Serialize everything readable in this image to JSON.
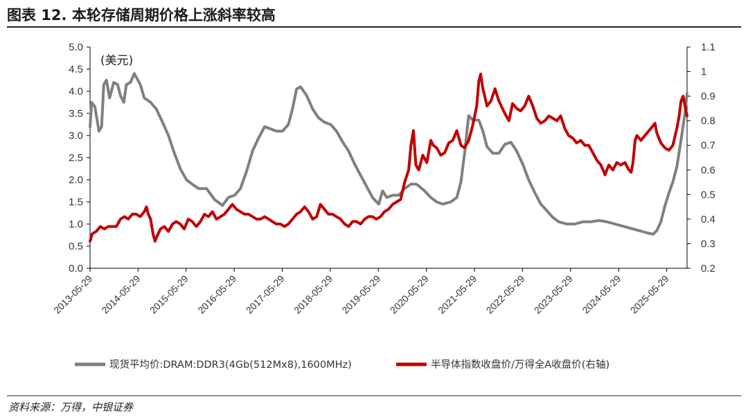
{
  "figure": {
    "title": "图表 12. 本轮存储周期价格上涨斜率较高",
    "source": "资料来源：万得，中银证券"
  },
  "colors": {
    "gray_series": "#7f7f7f",
    "red_series": "#c00000",
    "axis": "#000000"
  },
  "chart_data": {
    "type": "line",
    "title": "",
    "unit_label": "(美元)",
    "x_ticks": [
      "2013-05-29",
      "2014-05-29",
      "2015-05-29",
      "2016-05-29",
      "2017-05-29",
      "2018-05-29",
      "2019-05-29",
      "2020-05-29",
      "2021-05-29",
      "2022-05-29",
      "2023-05-29",
      "2024-05-29",
      "2025-05-29"
    ],
    "x_range": [
      "2013-05-29",
      "2025-10-31"
    ],
    "y_left": {
      "range": [
        0,
        5.0
      ],
      "ticks": [
        "0.0",
        "0.5",
        "1.0",
        "1.5",
        "2.0",
        "2.5",
        "3.0",
        "3.5",
        "4.0",
        "4.5",
        "5.0"
      ]
    },
    "y_right": {
      "range": [
        0.2,
        1.1
      ],
      "ticks": [
        "0.2",
        "0.3",
        "0.4",
        "0.5",
        "0.6",
        "0.7",
        "0.8",
        "0.9",
        "1",
        "1.1"
      ]
    },
    "grid": false,
    "legend_position": "bottom",
    "series": [
      {
        "name": "现货平均价:DRAM:DDR3(4Gb(512Mx8),1600MHz)",
        "axis": "left",
        "color": "#7f7f7f",
        "points": [
          [
            "2013-05-29",
            3.2
          ],
          [
            "2013-06-10",
            3.75
          ],
          [
            "2013-07-05",
            3.65
          ],
          [
            "2013-08-05",
            3.1
          ],
          [
            "2013-08-25",
            3.2
          ],
          [
            "2013-09-10",
            4.15
          ],
          [
            "2013-10-01",
            4.25
          ],
          [
            "2013-10-25",
            3.85
          ],
          [
            "2013-11-25",
            4.2
          ],
          [
            "2013-12-25",
            4.15
          ],
          [
            "2014-01-15",
            3.9
          ],
          [
            "2014-02-10",
            3.75
          ],
          [
            "2014-03-01",
            4.15
          ],
          [
            "2014-04-01",
            4.2
          ],
          [
            "2014-05-01",
            4.4
          ],
          [
            "2014-06-15",
            4.15
          ],
          [
            "2014-07-15",
            3.85
          ],
          [
            "2014-09-01",
            3.75
          ],
          [
            "2014-10-15",
            3.6
          ],
          [
            "2014-12-01",
            3.3
          ],
          [
            "2015-01-15",
            3.0
          ],
          [
            "2015-03-01",
            2.6
          ],
          [
            "2015-04-15",
            2.25
          ],
          [
            "2015-06-01",
            2.0
          ],
          [
            "2015-07-15",
            1.9
          ],
          [
            "2015-09-01",
            1.8
          ],
          [
            "2015-11-01",
            1.8
          ],
          [
            "2016-01-01",
            1.55
          ],
          [
            "2016-03-01",
            1.42
          ],
          [
            "2016-04-15",
            1.6
          ],
          [
            "2016-06-01",
            1.65
          ],
          [
            "2016-07-15",
            1.8
          ],
          [
            "2016-09-01",
            2.2
          ],
          [
            "2016-10-15",
            2.65
          ],
          [
            "2016-12-01",
            2.95
          ],
          [
            "2017-01-15",
            3.2
          ],
          [
            "2017-03-01",
            3.15
          ],
          [
            "2017-04-15",
            3.1
          ],
          [
            "2017-06-01",
            3.1
          ],
          [
            "2017-07-15",
            3.25
          ],
          [
            "2017-08-15",
            3.6
          ],
          [
            "2017-09-15",
            4.05
          ],
          [
            "2017-10-15",
            4.1
          ],
          [
            "2017-12-01",
            3.9
          ],
          [
            "2018-01-15",
            3.6
          ],
          [
            "2018-03-01",
            3.4
          ],
          [
            "2018-04-15",
            3.3
          ],
          [
            "2018-06-01",
            3.25
          ],
          [
            "2018-07-15",
            3.1
          ],
          [
            "2018-09-01",
            2.85
          ],
          [
            "2018-10-15",
            2.65
          ],
          [
            "2018-12-01",
            2.35
          ],
          [
            "2019-01-15",
            2.1
          ],
          [
            "2019-03-01",
            1.85
          ],
          [
            "2019-04-15",
            1.6
          ],
          [
            "2019-06-01",
            1.45
          ],
          [
            "2019-07-01",
            1.75
          ],
          [
            "2019-08-01",
            1.6
          ],
          [
            "2019-09-15",
            1.65
          ],
          [
            "2019-11-01",
            1.65
          ],
          [
            "2019-12-15",
            1.8
          ],
          [
            "2020-02-01",
            1.9
          ],
          [
            "2020-03-15",
            1.9
          ],
          [
            "2020-05-15",
            1.75
          ],
          [
            "2020-07-01",
            1.6
          ],
          [
            "2020-08-15",
            1.5
          ],
          [
            "2020-10-01",
            1.45
          ],
          [
            "2020-12-01",
            1.5
          ],
          [
            "2021-01-15",
            1.6
          ],
          [
            "2021-02-15",
            1.95
          ],
          [
            "2021-03-15",
            2.6
          ],
          [
            "2021-04-15",
            3.45
          ],
          [
            "2021-05-15",
            3.35
          ],
          [
            "2021-07-01",
            3.35
          ],
          [
            "2021-08-01",
            3.1
          ],
          [
            "2021-09-01",
            2.75
          ],
          [
            "2021-10-15",
            2.6
          ],
          [
            "2021-12-01",
            2.6
          ],
          [
            "2022-01-15",
            2.8
          ],
          [
            "2022-03-01",
            2.85
          ],
          [
            "2022-04-15",
            2.65
          ],
          [
            "2022-06-01",
            2.35
          ],
          [
            "2022-07-15",
            2.0
          ],
          [
            "2022-09-01",
            1.7
          ],
          [
            "2022-10-15",
            1.45
          ],
          [
            "2022-12-01",
            1.3
          ],
          [
            "2023-01-15",
            1.15
          ],
          [
            "2023-03-01",
            1.05
          ],
          [
            "2023-05-01",
            1.0
          ],
          [
            "2023-07-01",
            1.0
          ],
          [
            "2023-09-01",
            1.05
          ],
          [
            "2023-11-01",
            1.05
          ],
          [
            "2024-01-01",
            1.08
          ],
          [
            "2024-03-01",
            1.05
          ],
          [
            "2024-05-01",
            1.0
          ],
          [
            "2024-07-01",
            0.95
          ],
          [
            "2024-09-01",
            0.9
          ],
          [
            "2024-11-01",
            0.85
          ],
          [
            "2025-01-01",
            0.8
          ],
          [
            "2025-02-15",
            0.77
          ],
          [
            "2025-03-15",
            0.85
          ],
          [
            "2025-04-15",
            1.05
          ],
          [
            "2025-05-15",
            1.4
          ],
          [
            "2025-06-15",
            1.7
          ],
          [
            "2025-07-15",
            1.95
          ],
          [
            "2025-08-15",
            2.3
          ],
          [
            "2025-09-15",
            2.9
          ],
          [
            "2025-10-15",
            3.5
          ],
          [
            "2025-10-31",
            3.95
          ]
        ]
      },
      {
        "name": "半导体指数收盘价/万得全A收盘价(右轴)",
        "axis": "right",
        "color": "#c00000",
        "points": [
          [
            "2013-05-29",
            0.31
          ],
          [
            "2013-06-15",
            0.34
          ],
          [
            "2013-07-15",
            0.35
          ],
          [
            "2013-08-15",
            0.37
          ],
          [
            "2013-09-15",
            0.36
          ],
          [
            "2013-10-15",
            0.37
          ],
          [
            "2013-11-15",
            0.37
          ],
          [
            "2013-12-15",
            0.37
          ],
          [
            "2014-01-15",
            0.4
          ],
          [
            "2014-02-15",
            0.41
          ],
          [
            "2014-03-15",
            0.4
          ],
          [
            "2014-04-15",
            0.42
          ],
          [
            "2014-05-15",
            0.42
          ],
          [
            "2014-06-15",
            0.41
          ],
          [
            "2014-07-15",
            0.43
          ],
          [
            "2014-08-01",
            0.45
          ],
          [
            "2014-08-15",
            0.42
          ],
          [
            "2014-09-01",
            0.4
          ],
          [
            "2014-09-20",
            0.34
          ],
          [
            "2014-10-05",
            0.31
          ],
          [
            "2014-10-20",
            0.33
          ],
          [
            "2014-11-15",
            0.36
          ],
          [
            "2014-12-15",
            0.37
          ],
          [
            "2015-01-15",
            0.35
          ],
          [
            "2015-02-15",
            0.38
          ],
          [
            "2015-03-15",
            0.39
          ],
          [
            "2015-04-15",
            0.38
          ],
          [
            "2015-05-15",
            0.36
          ],
          [
            "2015-06-15",
            0.4
          ],
          [
            "2015-07-15",
            0.39
          ],
          [
            "2015-08-15",
            0.37
          ],
          [
            "2015-09-15",
            0.39
          ],
          [
            "2015-10-15",
            0.42
          ],
          [
            "2015-11-15",
            0.41
          ],
          [
            "2015-12-15",
            0.43
          ],
          [
            "2016-01-15",
            0.4
          ],
          [
            "2016-02-15",
            0.41
          ],
          [
            "2016-03-15",
            0.42
          ],
          [
            "2016-04-15",
            0.44
          ],
          [
            "2016-05-15",
            0.46
          ],
          [
            "2016-06-15",
            0.44
          ],
          [
            "2016-07-15",
            0.43
          ],
          [
            "2016-08-15",
            0.42
          ],
          [
            "2016-09-15",
            0.42
          ],
          [
            "2016-10-15",
            0.41
          ],
          [
            "2016-11-15",
            0.4
          ],
          [
            "2016-12-15",
            0.4
          ],
          [
            "2017-01-15",
            0.41
          ],
          [
            "2017-02-15",
            0.4
          ],
          [
            "2017-03-15",
            0.39
          ],
          [
            "2017-04-15",
            0.38
          ],
          [
            "2017-05-15",
            0.38
          ],
          [
            "2017-06-15",
            0.37
          ],
          [
            "2017-07-15",
            0.38
          ],
          [
            "2017-08-15",
            0.4
          ],
          [
            "2017-09-15",
            0.42
          ],
          [
            "2017-10-15",
            0.43
          ],
          [
            "2017-11-15",
            0.45
          ],
          [
            "2017-12-15",
            0.43
          ],
          [
            "2018-01-15",
            0.4
          ],
          [
            "2018-02-15",
            0.41
          ],
          [
            "2018-03-15",
            0.46
          ],
          [
            "2018-04-15",
            0.44
          ],
          [
            "2018-05-15",
            0.42
          ],
          [
            "2018-06-15",
            0.42
          ],
          [
            "2018-07-15",
            0.41
          ],
          [
            "2018-08-15",
            0.4
          ],
          [
            "2018-09-15",
            0.38
          ],
          [
            "2018-10-15",
            0.37
          ],
          [
            "2018-11-15",
            0.39
          ],
          [
            "2018-12-15",
            0.39
          ],
          [
            "2019-01-15",
            0.38
          ],
          [
            "2019-02-15",
            0.4
          ],
          [
            "2019-03-15",
            0.41
          ],
          [
            "2019-04-15",
            0.41
          ],
          [
            "2019-05-15",
            0.4
          ],
          [
            "2019-06-15",
            0.41
          ],
          [
            "2019-07-15",
            0.43
          ],
          [
            "2019-08-15",
            0.44
          ],
          [
            "2019-09-15",
            0.46
          ],
          [
            "2019-10-15",
            0.47
          ],
          [
            "2019-11-15",
            0.48
          ],
          [
            "2019-12-15",
            0.55
          ],
          [
            "2020-01-15",
            0.6
          ],
          [
            "2020-02-01",
            0.7
          ],
          [
            "2020-02-20",
            0.76
          ],
          [
            "2020-03-10",
            0.62
          ],
          [
            "2020-04-01",
            0.6
          ],
          [
            "2020-05-01",
            0.66
          ],
          [
            "2020-06-01",
            0.63
          ],
          [
            "2020-07-01",
            0.72
          ],
          [
            "2020-07-20",
            0.7
          ],
          [
            "2020-08-15",
            0.69
          ],
          [
            "2020-09-15",
            0.66
          ],
          [
            "2020-10-15",
            0.67
          ],
          [
            "2020-11-15",
            0.71
          ],
          [
            "2020-12-15",
            0.72
          ],
          [
            "2021-01-15",
            0.76
          ],
          [
            "2021-02-15",
            0.7
          ],
          [
            "2021-03-15",
            0.69
          ],
          [
            "2021-04-15",
            0.72
          ],
          [
            "2021-05-15",
            0.78
          ],
          [
            "2021-06-15",
            0.86
          ],
          [
            "2021-07-01",
            0.96
          ],
          [
            "2021-07-15",
            0.99
          ],
          [
            "2021-08-01",
            0.93
          ],
          [
            "2021-08-15",
            0.9
          ],
          [
            "2021-09-01",
            0.86
          ],
          [
            "2021-10-01",
            0.88
          ],
          [
            "2021-11-01",
            0.93
          ],
          [
            "2021-12-01",
            0.88
          ],
          [
            "2022-01-15",
            0.83
          ],
          [
            "2022-02-15",
            0.8
          ],
          [
            "2022-03-15",
            0.87
          ],
          [
            "2022-04-15",
            0.85
          ],
          [
            "2022-05-15",
            0.84
          ],
          [
            "2022-06-15",
            0.86
          ],
          [
            "2022-07-15",
            0.9
          ],
          [
            "2022-08-15",
            0.86
          ],
          [
            "2022-09-15",
            0.81
          ],
          [
            "2022-10-15",
            0.79
          ],
          [
            "2022-11-15",
            0.8
          ],
          [
            "2022-12-15",
            0.82
          ],
          [
            "2023-01-15",
            0.81
          ],
          [
            "2023-02-15",
            0.8
          ],
          [
            "2023-03-15",
            0.82
          ],
          [
            "2023-04-15",
            0.77
          ],
          [
            "2023-05-15",
            0.74
          ],
          [
            "2023-06-15",
            0.73
          ],
          [
            "2023-07-15",
            0.71
          ],
          [
            "2023-08-15",
            0.72
          ],
          [
            "2023-09-15",
            0.7
          ],
          [
            "2023-10-15",
            0.7
          ],
          [
            "2023-11-15",
            0.67
          ],
          [
            "2023-12-15",
            0.64
          ],
          [
            "2024-01-15",
            0.62
          ],
          [
            "2024-02-01",
            0.6
          ],
          [
            "2024-02-15",
            0.58
          ],
          [
            "2024-03-15",
            0.62
          ],
          [
            "2024-04-15",
            0.6
          ],
          [
            "2024-05-15",
            0.63
          ],
          [
            "2024-06-15",
            0.62
          ],
          [
            "2024-07-15",
            0.63
          ],
          [
            "2024-08-15",
            0.6
          ],
          [
            "2024-09-01",
            0.59
          ],
          [
            "2024-09-15",
            0.63
          ],
          [
            "2024-10-01",
            0.72
          ],
          [
            "2024-10-15",
            0.74
          ],
          [
            "2024-11-15",
            0.72
          ],
          [
            "2024-12-15",
            0.74
          ],
          [
            "2025-01-15",
            0.76
          ],
          [
            "2025-02-15",
            0.78
          ],
          [
            "2025-03-01",
            0.79
          ],
          [
            "2025-03-15",
            0.75
          ],
          [
            "2025-04-15",
            0.71
          ],
          [
            "2025-05-15",
            0.69
          ],
          [
            "2025-06-15",
            0.68
          ],
          [
            "2025-07-15",
            0.7
          ],
          [
            "2025-08-15",
            0.77
          ],
          [
            "2025-09-01",
            0.82
          ],
          [
            "2025-09-15",
            0.88
          ],
          [
            "2025-10-01",
            0.9
          ],
          [
            "2025-10-15",
            0.86
          ],
          [
            "2025-10-31",
            0.82
          ]
        ]
      }
    ]
  }
}
